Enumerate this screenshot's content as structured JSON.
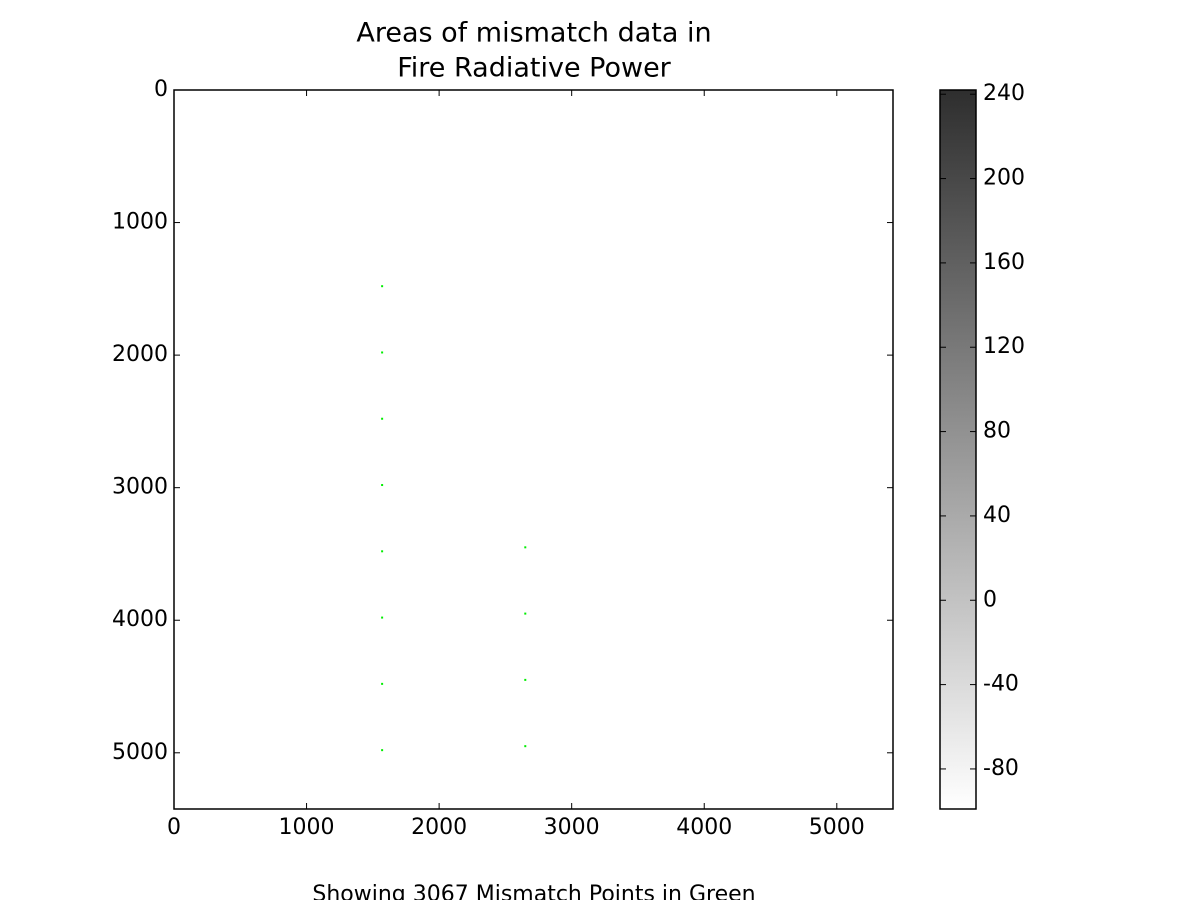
{
  "chart_data": {
    "type": "image",
    "title": [
      "Areas of mismatch data in",
      "Fire Radiative Power"
    ],
    "xlabel": "Showing 3067 Mismatch Points in Green",
    "xlim": [
      0,
      5424
    ],
    "ylim": [
      5424,
      0
    ],
    "xticks": [
      0,
      1000,
      2000,
      3000,
      4000,
      5000
    ],
    "yticks": [
      0,
      1000,
      2000,
      3000,
      4000,
      5000
    ],
    "grid": false,
    "points": {
      "color": "#00ee00",
      "x": [
        1570,
        1570,
        1570,
        1570,
        1570,
        1570,
        1570,
        1570,
        2650,
        2650,
        2650,
        2650
      ],
      "y": [
        1480,
        1980,
        2480,
        2980,
        3480,
        3980,
        4480,
        4980,
        3450,
        3950,
        4450,
        4950
      ]
    },
    "colorbar": {
      "lim": [
        -99,
        242
      ],
      "ticks": [
        240,
        200,
        160,
        120,
        80,
        40,
        0,
        -40,
        -80
      ],
      "colors": [
        "#ffffff",
        "#2e2e2e"
      ]
    }
  }
}
